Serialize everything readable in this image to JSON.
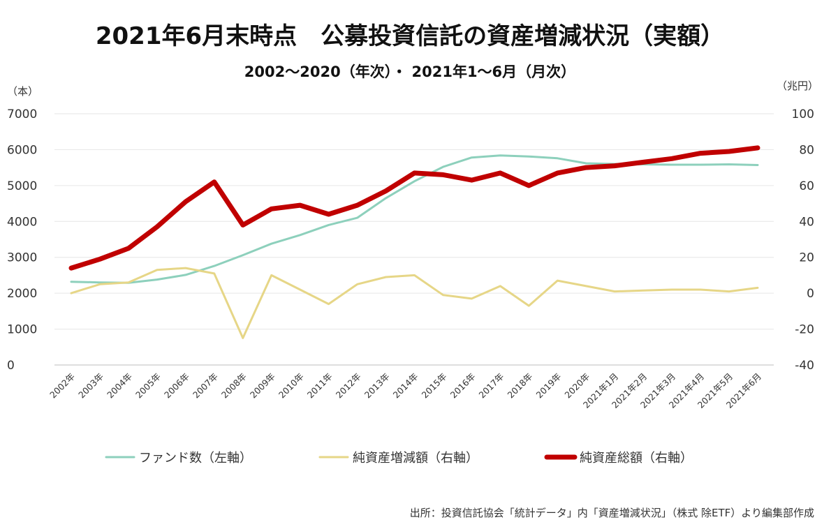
{
  "chart_data": {
    "type": "line",
    "title": "2021年6月末時点　公募投資信託の資産増減状況（実額）",
    "subtitle": "2002～2020（年次）・ 2021年1～6月（月次）",
    "left_axis_unit": "（本）",
    "right_axis_unit": "（兆円）",
    "ylim_left": [
      0,
      7000
    ],
    "ylim_right": [
      -40,
      100
    ],
    "yticks_left": [
      "0",
      "1000",
      "2000",
      "3000",
      "4000",
      "5000",
      "6000",
      "7000"
    ],
    "yticks_right": [
      "-40",
      "-20",
      "0",
      "20",
      "40",
      "60",
      "80",
      "100"
    ],
    "grid": true,
    "legend_position": "bottom",
    "categories": [
      "2002年",
      "2003年",
      "2004年",
      "2005年",
      "2006年",
      "2007年",
      "2008年",
      "2009年",
      "2010年",
      "2011年",
      "2012年",
      "2013年",
      "2014年",
      "2015年",
      "2016年",
      "2017年",
      "2018年",
      "2019年",
      "2020年",
      "2021年1月",
      "2021年2月",
      "2021年3月",
      "2021年4月",
      "2021年5月",
      "2021年6月"
    ],
    "series": [
      {
        "name": "ファンド数（左軸）",
        "axis": "left",
        "color": "#8dd0bc",
        "values": [
          2320,
          2300,
          2290,
          2380,
          2510,
          2760,
          3060,
          3380,
          3620,
          3900,
          4100,
          4650,
          5120,
          5520,
          5780,
          5840,
          5810,
          5760,
          5620,
          5600,
          5590,
          5580,
          5580,
          5590,
          5570
        ]
      },
      {
        "name": "純資産増減額（右軸）",
        "axis": "right",
        "color": "#e6d687",
        "values": [
          0,
          5,
          6,
          13,
          14,
          11,
          -25,
          10,
          2,
          -6,
          5,
          9,
          10,
          -1,
          -3,
          4,
          -7,
          7,
          4,
          1,
          1.5,
          2,
          2,
          1,
          3
        ]
      },
      {
        "name": "純資産総額（右軸）",
        "axis": "right",
        "color": "#c00000",
        "values": [
          14,
          19,
          25,
          37,
          51,
          62,
          38,
          47,
          49,
          44,
          49,
          57,
          67,
          66,
          63,
          67,
          60,
          67,
          70,
          71,
          73,
          75,
          78,
          79,
          81
        ]
      }
    ]
  },
  "source_note": "出所：投資信託協会「統計データ」内「資産増減状況」（株式 除ETF）より編集部作成",
  "colors": {
    "negative_tick": "#e00000",
    "grid": "#e6e6e6",
    "axis": "#bdbdbd"
  }
}
